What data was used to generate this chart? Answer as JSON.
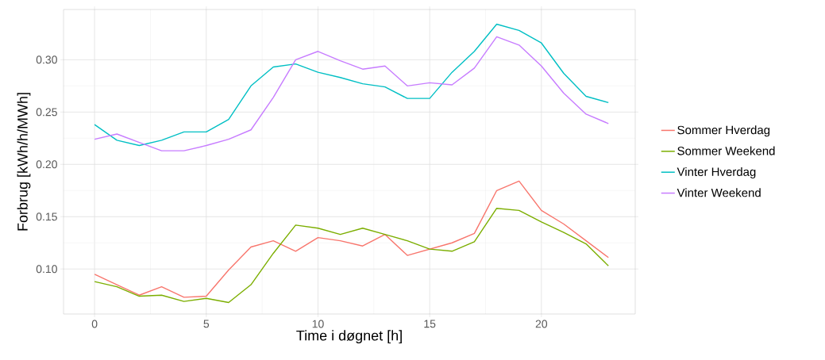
{
  "chart_data": {
    "type": "line",
    "xlabel": "Time i døgnet [h]",
    "ylabel": "Forbrug [kWh/h/MWh]",
    "x": [
      0,
      1,
      2,
      3,
      4,
      5,
      6,
      7,
      8,
      9,
      10,
      11,
      12,
      13,
      14,
      15,
      16,
      17,
      18,
      19,
      20,
      21,
      22,
      23
    ],
    "series": [
      {
        "name": "Sommer Hverdag",
        "color": "#f8766d",
        "values": [
          0.095,
          0.085,
          0.075,
          0.083,
          0.073,
          0.074,
          0.099,
          0.121,
          0.127,
          0.117,
          0.13,
          0.127,
          0.122,
          0.133,
          0.113,
          0.119,
          0.125,
          0.134,
          0.175,
          0.184,
          0.156,
          0.143,
          0.127,
          0.111
        ]
      },
      {
        "name": "Sommer Weekend",
        "color": "#7cae00",
        "values": [
          0.088,
          0.083,
          0.074,
          0.075,
          0.069,
          0.072,
          0.068,
          0.085,
          0.115,
          0.142,
          0.139,
          0.133,
          0.139,
          0.133,
          0.127,
          0.119,
          0.117,
          0.126,
          0.158,
          0.156,
          0.145,
          0.135,
          0.124,
          0.103
        ]
      },
      {
        "name": "Vinter Hverdag",
        "color": "#00bfc4",
        "values": [
          0.238,
          0.223,
          0.218,
          0.223,
          0.231,
          0.231,
          0.243,
          0.275,
          0.293,
          0.296,
          0.288,
          0.283,
          0.277,
          0.274,
          0.263,
          0.263,
          0.288,
          0.308,
          0.334,
          0.328,
          0.316,
          0.287,
          0.265,
          0.259
        ]
      },
      {
        "name": "Vinter Weekend",
        "color": "#c77cff",
        "values": [
          0.224,
          0.229,
          0.221,
          0.213,
          0.213,
          0.218,
          0.224,
          0.233,
          0.264,
          0.3,
          0.308,
          0.299,
          0.291,
          0.294,
          0.275,
          0.278,
          0.276,
          0.292,
          0.322,
          0.314,
          0.294,
          0.268,
          0.248,
          0.239
        ]
      }
    ],
    "xlim": [
      -1.39,
      24.2
    ],
    "ylim": [
      0.057,
      0.348
    ],
    "xticks": [
      0,
      5,
      10,
      15,
      20
    ],
    "yticks": [
      {
        "value": 0.1,
        "label": "0.10"
      },
      {
        "value": 0.15,
        "label": "0.15"
      },
      {
        "value": 0.2,
        "label": "0.20"
      },
      {
        "value": 0.25,
        "label": "0.25"
      },
      {
        "value": 0.3,
        "label": "0.30"
      }
    ],
    "grid": true,
    "legend": "right",
    "marker": "none",
    "line_style": "solid"
  }
}
